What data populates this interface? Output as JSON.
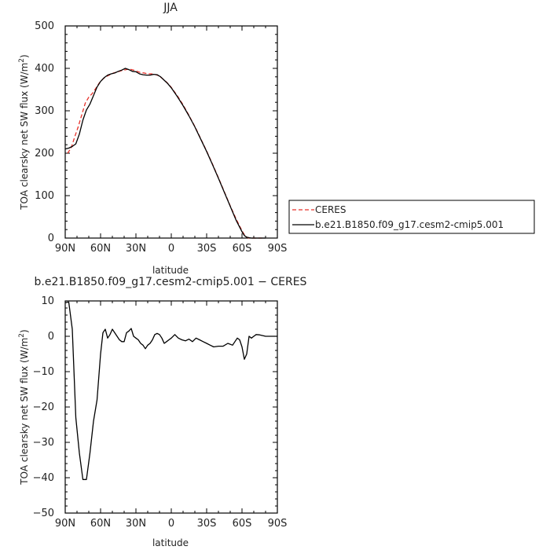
{
  "chart_data": [
    {
      "type": "line",
      "title": "JJA",
      "xlabel": "latitude",
      "ylabel": "TOA clearsky net SW flux (W/m²)",
      "ylabel_main": "TOA clearsky net SW flux (W/m",
      "ylabel_exp": "2",
      "ylabel_end": ")",
      "xlim": [
        90,
        -90
      ],
      "ylim": [
        0,
        500
      ],
      "grid": false,
      "legend_position": "right",
      "x_ticks": [
        90,
        60,
        30,
        0,
        -30,
        -60,
        -90
      ],
      "x_tick_labels": [
        "90N",
        "60N",
        "30N",
        "0",
        "30S",
        "60S",
        "90S"
      ],
      "y_ticks": [
        0,
        100,
        200,
        300,
        400,
        500
      ],
      "y_tick_labels": [
        "0",
        "100",
        "200",
        "300",
        "400",
        "500"
      ],
      "series": [
        {
          "name": "CERES",
          "color": "#e8312a",
          "dash": "dashed",
          "x": [
            88,
            85,
            82,
            79,
            76,
            73,
            70,
            67,
            64,
            61,
            58,
            55,
            52,
            49,
            46,
            43,
            40,
            37,
            35,
            32,
            29,
            26,
            23,
            20,
            17,
            14,
            11,
            8,
            5,
            2,
            0,
            -5,
            -10,
            -15,
            -20,
            -25,
            -30,
            -35,
            -40,
            -45,
            -50,
            -55,
            -60,
            -62,
            -64,
            -66,
            -68,
            -70,
            -72,
            -74,
            -77
          ],
          "y": [
            200,
            212,
            238,
            262,
            290,
            318,
            332,
            341,
            353,
            366,
            375,
            381,
            385,
            389,
            391,
            394,
            396,
            398,
            398,
            396,
            393,
            390,
            389,
            387,
            387,
            386,
            383,
            377,
            370,
            362,
            355,
            336,
            314,
            289,
            263,
            234,
            205,
            174,
            142,
            109,
            76,
            45,
            17,
            8,
            2,
            0,
            0,
            0,
            0,
            0,
            0
          ]
        },
        {
          "name": "b.e21.B1850.f09_g17.cesm2-cmip5.001",
          "color": "#000000",
          "dash": "solid",
          "x": [
            90,
            87,
            84,
            81,
            78,
            75,
            72,
            69,
            66,
            63,
            60,
            57,
            54,
            51,
            48,
            45,
            42,
            39,
            36,
            33,
            30,
            27,
            24,
            21,
            18,
            15,
            12,
            9,
            6,
            3,
            0,
            -5,
            -10,
            -15,
            -20,
            -25,
            -30,
            -35,
            -40,
            -45,
            -50,
            -55,
            -60,
            -62,
            -64,
            -66,
            -68,
            -70,
            -73,
            -76,
            -80
          ],
          "y": [
            210,
            212,
            216,
            222,
            245,
            278,
            302,
            316,
            336,
            356,
            369,
            378,
            384,
            387,
            389,
            393,
            396,
            400,
            397,
            393,
            392,
            387,
            385,
            384,
            384,
            386,
            385,
            380,
            372,
            364,
            354,
            334,
            312,
            288,
            262,
            233,
            204,
            173,
            141,
            108,
            75,
            42,
            15,
            6,
            2,
            1,
            0,
            0,
            0,
            0,
            0
          ]
        }
      ]
    },
    {
      "type": "line",
      "title": "b.e21.B1850.f09_g17.cesm2-cmip5.001 − CERES",
      "xlabel": "latitude",
      "ylabel": "TOA clearsky net SW flux (W/m²)",
      "ylabel_main": "TOA clearsky net SW flux (W/m",
      "ylabel_exp": "2",
      "ylabel_end": ")",
      "xlim": [
        90,
        -90
      ],
      "ylim": [
        -50,
        10
      ],
      "grid": false,
      "x_ticks": [
        90,
        60,
        30,
        0,
        -30,
        -60,
        -90
      ],
      "x_tick_labels": [
        "90N",
        "60N",
        "30N",
        "0",
        "30S",
        "60S",
        "90S"
      ],
      "y_ticks": [
        -50,
        -40,
        -30,
        -20,
        -10,
        0,
        10
      ],
      "y_tick_labels": [
        "−50",
        "−40",
        "−30",
        "−20",
        "−10",
        "0",
        "10"
      ],
      "series": [
        {
          "color": "#000000",
          "dash": "solid",
          "x": [
            90,
            87,
            84,
            81,
            78,
            75,
            72,
            69,
            66,
            63,
            60,
            58,
            56,
            54,
            52,
            50,
            48,
            46,
            44,
            42,
            40,
            38,
            36,
            34,
            32,
            30,
            28,
            26,
            24,
            22,
            20,
            18,
            16,
            14,
            12,
            10,
            8,
            6,
            4,
            2,
            0,
            -3,
            -6,
            -9,
            -12,
            -15,
            -18,
            -21,
            -24,
            -27,
            -30,
            -33,
            -36,
            -40,
            -44,
            -48,
            -52,
            -56,
            -58,
            -60,
            -62,
            -64,
            -66,
            -68,
            -70,
            -72,
            -75,
            -80,
            -85,
            -90
          ],
          "y": [
            9.5,
            9.7,
            2,
            -23,
            -33,
            -40.5,
            -40.5,
            -33,
            -24,
            -18,
            -5,
            1,
            2,
            -0.5,
            0.5,
            2,
            1,
            0,
            -1,
            -1.5,
            -1.5,
            1,
            1.5,
            2.2,
            0,
            -0.5,
            -1,
            -2,
            -2.5,
            -3.5,
            -2.5,
            -2,
            -1,
            0.5,
            0.8,
            0.5,
            -0.5,
            -2,
            -1.5,
            -1,
            -0.5,
            0.5,
            -0.5,
            -1,
            -1.3,
            -0.8,
            -1.5,
            -0.5,
            -1,
            -1.5,
            -2,
            -2.5,
            -3,
            -2.8,
            -2.8,
            -2,
            -2.5,
            -0.5,
            -1,
            -3,
            -6.5,
            -5,
            0,
            -0.5,
            0,
            0.5,
            0.4,
            0,
            0,
            0
          ]
        }
      ]
    }
  ]
}
